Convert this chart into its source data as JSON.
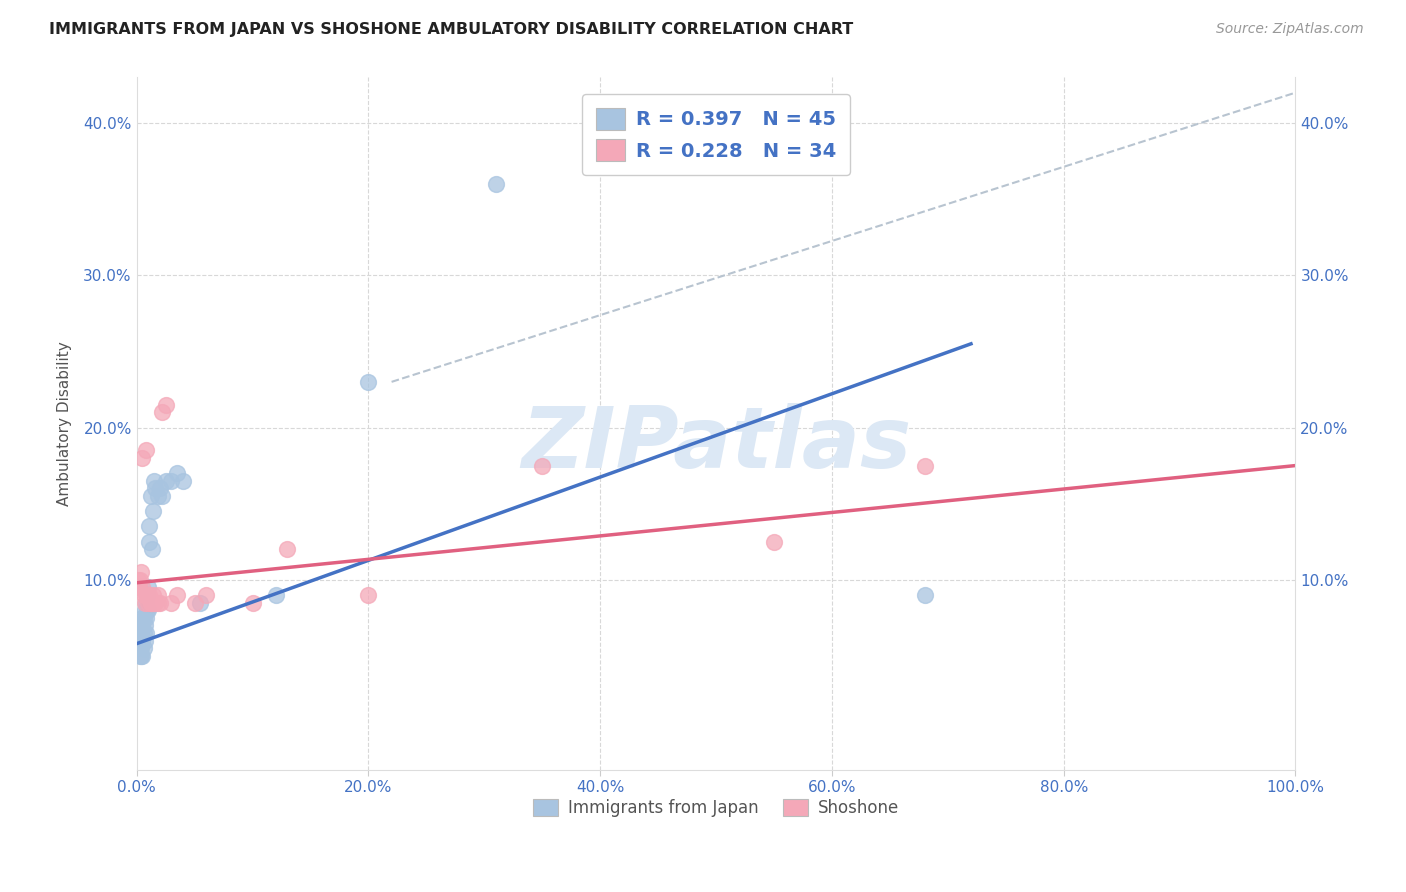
{
  "title": "IMMIGRANTS FROM JAPAN VS SHOSHONE AMBULATORY DISABILITY CORRELATION CHART",
  "source": "Source: ZipAtlas.com",
  "xlabel_blue": "Immigrants from Japan",
  "xlabel_pink": "Shoshone",
  "ylabel": "Ambulatory Disability",
  "xlim": [
    0.0,
    1.0
  ],
  "ylim": [
    -0.025,
    0.43
  ],
  "xticks": [
    0.0,
    0.2,
    0.4,
    0.6,
    0.8,
    1.0
  ],
  "yticks": [
    0.0,
    0.1,
    0.2,
    0.3,
    0.4
  ],
  "xtick_labels": [
    "0.0%",
    "20.0%",
    "40.0%",
    "60.0%",
    "80.0%",
    "100.0%"
  ],
  "ytick_labels_left": [
    "",
    "10.0%",
    "20.0%",
    "30.0%",
    "40.0%"
  ],
  "ytick_labels_right": [
    "",
    "10.0%",
    "20.0%",
    "30.0%",
    "40.0%"
  ],
  "R_blue": 0.397,
  "N_blue": 45,
  "R_pink": 0.228,
  "N_pink": 34,
  "blue_color": "#a8c4e0",
  "pink_color": "#f4a8b8",
  "blue_line_color": "#4472c4",
  "pink_line_color": "#e06080",
  "dashed_line_color": "#b8c4d0",
  "legend_text_color": "#4472c4",
  "watermark_color": "#dce8f5",
  "blue_scatter_x": [
    0.001,
    0.002,
    0.002,
    0.003,
    0.003,
    0.003,
    0.004,
    0.004,
    0.004,
    0.005,
    0.005,
    0.005,
    0.005,
    0.006,
    0.006,
    0.006,
    0.007,
    0.007,
    0.007,
    0.008,
    0.008,
    0.008,
    0.009,
    0.009,
    0.01,
    0.01,
    0.011,
    0.011,
    0.012,
    0.013,
    0.014,
    0.015,
    0.016,
    0.018,
    0.02,
    0.022,
    0.025,
    0.03,
    0.035,
    0.04,
    0.055,
    0.12,
    0.2,
    0.31,
    0.68
  ],
  "blue_scatter_y": [
    0.055,
    0.065,
    0.07,
    0.05,
    0.06,
    0.055,
    0.065,
    0.055,
    0.05,
    0.075,
    0.07,
    0.06,
    0.05,
    0.075,
    0.065,
    0.055,
    0.08,
    0.07,
    0.06,
    0.085,
    0.075,
    0.065,
    0.09,
    0.08,
    0.095,
    0.08,
    0.135,
    0.125,
    0.155,
    0.12,
    0.145,
    0.165,
    0.16,
    0.155,
    0.16,
    0.155,
    0.165,
    0.165,
    0.17,
    0.165,
    0.085,
    0.09,
    0.23,
    0.36,
    0.09
  ],
  "pink_scatter_x": [
    0.001,
    0.002,
    0.003,
    0.004,
    0.005,
    0.006,
    0.007,
    0.008,
    0.009,
    0.01,
    0.011,
    0.012,
    0.013,
    0.014,
    0.015,
    0.016,
    0.018,
    0.02,
    0.022,
    0.025,
    0.03,
    0.035,
    0.05,
    0.06,
    0.1,
    0.13,
    0.2,
    0.35,
    0.55,
    0.68,
    0.005,
    0.008,
    0.012,
    0.018
  ],
  "pink_scatter_y": [
    0.1,
    0.095,
    0.1,
    0.105,
    0.095,
    0.09,
    0.085,
    0.09,
    0.09,
    0.085,
    0.09,
    0.085,
    0.085,
    0.09,
    0.085,
    0.085,
    0.085,
    0.085,
    0.21,
    0.215,
    0.085,
    0.09,
    0.085,
    0.09,
    0.085,
    0.12,
    0.09,
    0.175,
    0.125,
    0.175,
    0.18,
    0.185,
    0.085,
    0.09
  ],
  "blue_trendline_x": [
    0.0,
    0.72
  ],
  "blue_trendline_y": [
    0.058,
    0.255
  ],
  "pink_trendline_x": [
    0.0,
    1.0
  ],
  "pink_trendline_y": [
    0.098,
    0.175
  ],
  "dashed_line_x": [
    0.22,
    1.0
  ],
  "dashed_line_y": [
    0.23,
    0.42
  ]
}
